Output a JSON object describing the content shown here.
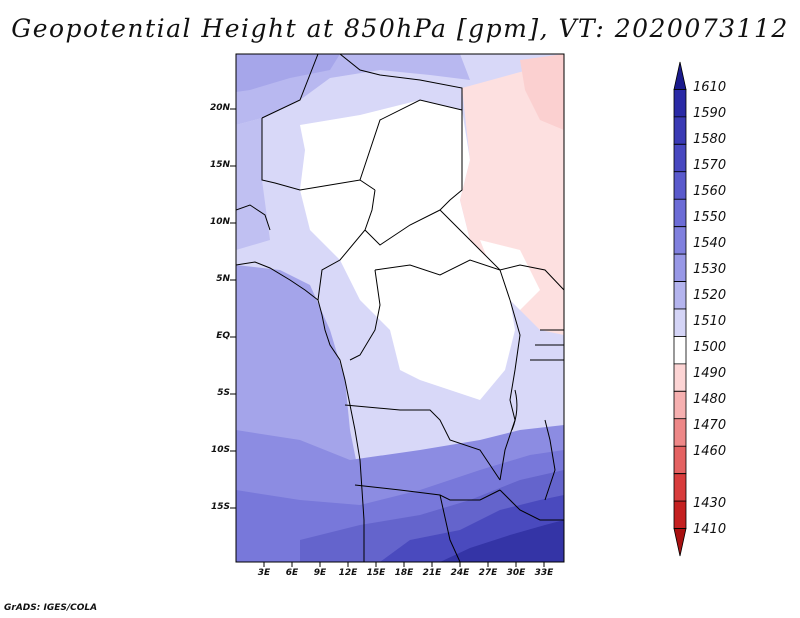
{
  "title": "Geopotential Height at 850hPa [gpm], VT: 2020073112",
  "footer": "GrADS: IGES/COLA",
  "map": {
    "lat_labels": [
      "20N",
      "15N",
      "10N",
      "5N",
      "EQ",
      "5S",
      "10S",
      "15S"
    ],
    "lon_labels": [
      "3E",
      "6E",
      "9E",
      "12E",
      "15E",
      "18E",
      "21E",
      "24E",
      "27E",
      "30E",
      "33E"
    ],
    "extent": {
      "lon_min": 0,
      "lon_max": 35,
      "lat_min": -20,
      "lat_max": 25
    }
  },
  "colorbar": {
    "levels": [
      "1610",
      "1590",
      "1580",
      "1570",
      "1560",
      "1550",
      "1540",
      "1530",
      "1520",
      "1510",
      "1500",
      "1490",
      "1480",
      "1470",
      "1460",
      "1430",
      "1410"
    ],
    "colors": [
      "#1a1a8c",
      "#2a2aa6",
      "#3a3ab4",
      "#4848c0",
      "#5a5acc",
      "#6c6cd6",
      "#8080de",
      "#9898e6",
      "#b4b4ee",
      "#d4d4f6",
      "#ffffff",
      "#fcd4d4",
      "#f6b0b0",
      "#ee8888",
      "#e46262",
      "#d83c3c",
      "#c42020",
      "#a81010"
    ]
  }
}
